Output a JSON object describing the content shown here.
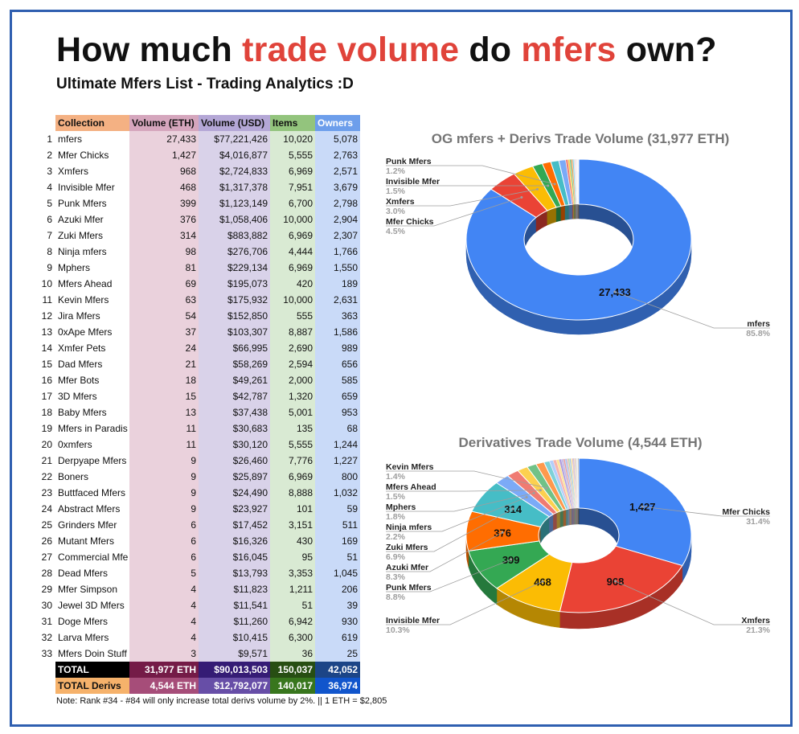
{
  "header": {
    "title_part1": "How much ",
    "title_part2": "trade volume",
    "title_part3": " do ",
    "title_part4": "mfers",
    "title_part5": " own?",
    "subtitle": "Ultimate Mfers List - Trading Analytics :D"
  },
  "table": {
    "columns": [
      "Collection",
      "Volume (ETH)",
      "Volume (USD)",
      "Items",
      "Owners"
    ],
    "rows": [
      {
        "rank": "1",
        "name": "mfers",
        "eth": "27,433",
        "usd": "$77,221,426",
        "items": "10,020",
        "owners": "5,078"
      },
      {
        "rank": "2",
        "name": "Mfer Chicks",
        "eth": "1,427",
        "usd": "$4,016,877",
        "items": "5,555",
        "owners": "2,763"
      },
      {
        "rank": "3",
        "name": "Xmfers",
        "eth": "968",
        "usd": "$2,724,833",
        "items": "6,969",
        "owners": "2,571"
      },
      {
        "rank": "4",
        "name": "Invisible Mfer",
        "eth": "468",
        "usd": "$1,317,378",
        "items": "7,951",
        "owners": "3,679"
      },
      {
        "rank": "5",
        "name": "Punk Mfers",
        "eth": "399",
        "usd": "$1,123,149",
        "items": "6,700",
        "owners": "2,798"
      },
      {
        "rank": "6",
        "name": "Azuki Mfer",
        "eth": "376",
        "usd": "$1,058,406",
        "items": "10,000",
        "owners": "2,904"
      },
      {
        "rank": "7",
        "name": "Zuki Mfers",
        "eth": "314",
        "usd": "$883,882",
        "items": "6,969",
        "owners": "2,307"
      },
      {
        "rank": "8",
        "name": "Ninja mfers",
        "eth": "98",
        "usd": "$276,706",
        "items": "4,444",
        "owners": "1,766"
      },
      {
        "rank": "9",
        "name": "Mphers",
        "eth": "81",
        "usd": "$229,134",
        "items": "6,969",
        "owners": "1,550"
      },
      {
        "rank": "10",
        "name": "Mfers Ahead",
        "eth": "69",
        "usd": "$195,073",
        "items": "420",
        "owners": "189"
      },
      {
        "rank": "11",
        "name": "Kevin Mfers",
        "eth": "63",
        "usd": "$175,932",
        "items": "10,000",
        "owners": "2,631"
      },
      {
        "rank": "12",
        "name": "Jira Mfers",
        "eth": "54",
        "usd": "$152,850",
        "items": "555",
        "owners": "363"
      },
      {
        "rank": "13",
        "name": "0xApe Mfers",
        "eth": "37",
        "usd": "$103,307",
        "items": "8,887",
        "owners": "1,586"
      },
      {
        "rank": "14",
        "name": "Xmfer Pets",
        "eth": "24",
        "usd": "$66,995",
        "items": "2,690",
        "owners": "989"
      },
      {
        "rank": "15",
        "name": "Dad Mfers",
        "eth": "21",
        "usd": "$58,269",
        "items": "2,594",
        "owners": "656"
      },
      {
        "rank": "16",
        "name": "Mfer Bots",
        "eth": "18",
        "usd": "$49,261",
        "items": "2,000",
        "owners": "585"
      },
      {
        "rank": "17",
        "name": "3D Mfers",
        "eth": "15",
        "usd": "$42,787",
        "items": "1,320",
        "owners": "659"
      },
      {
        "rank": "18",
        "name": "Baby Mfers",
        "eth": "13",
        "usd": "$37,438",
        "items": "5,001",
        "owners": "953"
      },
      {
        "rank": "19",
        "name": "Mfers in Paradis",
        "eth": "11",
        "usd": "$30,683",
        "items": "135",
        "owners": "68"
      },
      {
        "rank": "20",
        "name": "0xmfers",
        "eth": "11",
        "usd": "$30,120",
        "items": "5,555",
        "owners": "1,244"
      },
      {
        "rank": "21",
        "name": "Derpyape Mfers",
        "eth": "9",
        "usd": "$26,460",
        "items": "7,776",
        "owners": "1,227"
      },
      {
        "rank": "22",
        "name": "Boners",
        "eth": "9",
        "usd": "$25,897",
        "items": "6,969",
        "owners": "800"
      },
      {
        "rank": "23",
        "name": "Buttfaced Mfers",
        "eth": "9",
        "usd": "$24,490",
        "items": "8,888",
        "owners": "1,032"
      },
      {
        "rank": "24",
        "name": "Abstract Mfers",
        "eth": "9",
        "usd": "$23,927",
        "items": "101",
        "owners": "59"
      },
      {
        "rank": "25",
        "name": "Grinders Mfer",
        "eth": "6",
        "usd": "$17,452",
        "items": "3,151",
        "owners": "511"
      },
      {
        "rank": "26",
        "name": "Mutant Mfers",
        "eth": "6",
        "usd": "$16,326",
        "items": "430",
        "owners": "169"
      },
      {
        "rank": "27",
        "name": "Commercial Mfe",
        "eth": "6",
        "usd": "$16,045",
        "items": "95",
        "owners": "51"
      },
      {
        "rank": "28",
        "name": "Dead Mfers",
        "eth": "5",
        "usd": "$13,793",
        "items": "3,353",
        "owners": "1,045"
      },
      {
        "rank": "29",
        "name": "Mfer Simpson",
        "eth": "4",
        "usd": "$11,823",
        "items": "1,211",
        "owners": "206"
      },
      {
        "rank": "30",
        "name": "Jewel 3D Mfers",
        "eth": "4",
        "usd": "$11,541",
        "items": "51",
        "owners": "39"
      },
      {
        "rank": "31",
        "name": "Doge Mfers",
        "eth": "4",
        "usd": "$11,260",
        "items": "6,942",
        "owners": "930"
      },
      {
        "rank": "32",
        "name": "Larva Mfers",
        "eth": "4",
        "usd": "$10,415",
        "items": "6,300",
        "owners": "619"
      },
      {
        "rank": "33",
        "name": "Mfers Doin Stuff",
        "eth": "3",
        "usd": "$9,571",
        "items": "36",
        "owners": "25"
      }
    ],
    "total": {
      "name": "TOTAL",
      "eth": "31,977 ETH",
      "usd": "$90,013,503",
      "items": "150,037",
      "owners": "42,052"
    },
    "total_derivs": {
      "name": "TOTAL Derivs",
      "eth": "4,544 ETH",
      "usd": "$12,792,077",
      "items": "140,017",
      "owners": "36,974"
    }
  },
  "note": "Note: Rank #34 - #84 will only increase total derivs volume by 2%. || 1 ETH = $2,805",
  "chart_data": [
    {
      "type": "pie",
      "title": "OG mfers + Derivs Trade Volume (31,977 ETH)",
      "categories": [
        "mfers",
        "Mfer Chicks",
        "Xmfers",
        "Invisible Mfer",
        "Punk Mfers",
        "Azuki Mfer",
        "Zuki Mfers",
        "Ninja mfers",
        "Mphers",
        "Mfers Ahead",
        "Kevin Mfers",
        "Jira Mfers",
        "0xApe Mfers",
        "Xmfer Pets",
        "Dad Mfers",
        "Mfer Bots",
        "3D Mfers",
        "Baby Mfers",
        "Mfers in Paradis",
        "0xmfers",
        "Derpyape Mfers",
        "Boners",
        "Buttfaced Mfers",
        "Abstract Mfers",
        "Grinders Mfer",
        "Mutant Mfers",
        "Commercial Mfe",
        "Dead Mfers",
        "Mfer Simpson",
        "Jewel 3D Mfers",
        "Doge Mfers",
        "Larva Mfers",
        "Mfers Doin Stuff"
      ],
      "values": [
        27433,
        1427,
        968,
        468,
        399,
        376,
        314,
        98,
        81,
        69,
        63,
        54,
        37,
        24,
        21,
        18,
        15,
        13,
        11,
        11,
        9,
        9,
        9,
        9,
        6,
        6,
        6,
        5,
        4,
        4,
        4,
        4,
        3
      ],
      "data_labels": [
        {
          "category": "mfers",
          "text": "27,433"
        }
      ],
      "callouts": [
        {
          "name": "Punk Mfers",
          "pct": "1.2%"
        },
        {
          "name": "Invisible Mfer",
          "pct": "1.5%"
        },
        {
          "name": "Xmfers",
          "pct": "3.0%"
        },
        {
          "name": "Mfer Chicks",
          "pct": "4.5%"
        },
        {
          "name": "mfers",
          "pct": "85.8%"
        }
      ],
      "colors": [
        "#4285f4",
        "#ea4335",
        "#fbbc04",
        "#34a853",
        "#ff6d01",
        "#46bdc6",
        "#7baaf7",
        "#f07b72",
        "#fcd04f",
        "#71c287",
        "#ff994d",
        "#7ed1d7",
        "#b3cefb",
        "#f7b4ae",
        "#fde49b",
        "#ae9dde",
        "#c2b9e5",
        "#e6a0a0",
        "#a4c2f4",
        "#e6b8af",
        "#b6d7a8",
        "#9fc5e8",
        "#ffe599",
        "#d5a6bd",
        "#b4a7d6",
        "#f9cb9c",
        "#a2c4c9",
        "#ea9999",
        "#cfe2f3",
        "#d9ead3",
        "#fce5cd",
        "#ead1dc",
        "#666666"
      ]
    },
    {
      "type": "pie",
      "title": "Derivatives Trade Volume (4,544 ETH)",
      "categories": [
        "Mfer Chicks",
        "Xmfers",
        "Invisible Mfer",
        "Punk Mfers",
        "Azuki Mfer",
        "Zuki Mfers",
        "Ninja mfers",
        "Mphers",
        "Mfers Ahead",
        "Kevin Mfers",
        "Jira Mfers",
        "0xApe Mfers",
        "Xmfer Pets",
        "Dad Mfers",
        "Mfer Bots",
        "3D Mfers",
        "Baby Mfers",
        "Mfers in Paradis",
        "0xmfers",
        "Derpyape Mfers",
        "Boners",
        "Buttfaced Mfers",
        "Abstract Mfers",
        "Grinders Mfer",
        "Mutant Mfers",
        "Commercial Mfe",
        "Dead Mfers",
        "Mfer Simpson",
        "Jewel 3D Mfers",
        "Doge Mfers",
        "Larva Mfers",
        "Mfers Doin Stuff"
      ],
      "values": [
        1427,
        968,
        468,
        399,
        376,
        314,
        98,
        81,
        69,
        63,
        54,
        37,
        24,
        21,
        18,
        15,
        13,
        11,
        11,
        9,
        9,
        9,
        9,
        6,
        6,
        6,
        5,
        4,
        4,
        4,
        4,
        3
      ],
      "data_labels": [
        {
          "category": "Mfer Chicks",
          "text": "1,427"
        },
        {
          "category": "Xmfers",
          "text": "968"
        },
        {
          "category": "Invisible Mfer",
          "text": "468"
        },
        {
          "category": "Punk Mfers",
          "text": "399"
        },
        {
          "category": "Azuki Mfer",
          "text": "376"
        },
        {
          "category": "Zuki Mfers",
          "text": "314"
        }
      ],
      "callouts": [
        {
          "name": "Kevin Mfers",
          "pct": "1.4%"
        },
        {
          "name": "Mfers Ahead",
          "pct": "1.5%"
        },
        {
          "name": "Mphers",
          "pct": "1.8%"
        },
        {
          "name": "Ninja mfers",
          "pct": "2.2%"
        },
        {
          "name": "Zuki Mfers",
          "pct": "6.9%"
        },
        {
          "name": "Azuki Mfer",
          "pct": "8.3%"
        },
        {
          "name": "Punk Mfers",
          "pct": "8.8%"
        },
        {
          "name": "Invisible Mfer",
          "pct": "10.3%"
        },
        {
          "name": "Mfer Chicks",
          "pct": "31.4%"
        },
        {
          "name": "Xmfers",
          "pct": "21.3%"
        }
      ],
      "colors": [
        "#4285f4",
        "#ea4335",
        "#fbbc04",
        "#34a853",
        "#ff6d01",
        "#46bdc6",
        "#7baaf7",
        "#f07b72",
        "#fcd04f",
        "#71c287",
        "#ff994d",
        "#7ed1d7",
        "#b3cefb",
        "#f7b4ae",
        "#fde49b",
        "#ae9dde",
        "#c2b9e5",
        "#e6a0a0",
        "#a4c2f4",
        "#e6b8af",
        "#b6d7a8",
        "#9fc5e8",
        "#ffe599",
        "#d5a6bd",
        "#b4a7d6",
        "#f9cb9c",
        "#a2c4c9",
        "#ea9999",
        "#cfe2f3",
        "#d9ead3",
        "#fce5cd",
        "#444444"
      ]
    }
  ]
}
